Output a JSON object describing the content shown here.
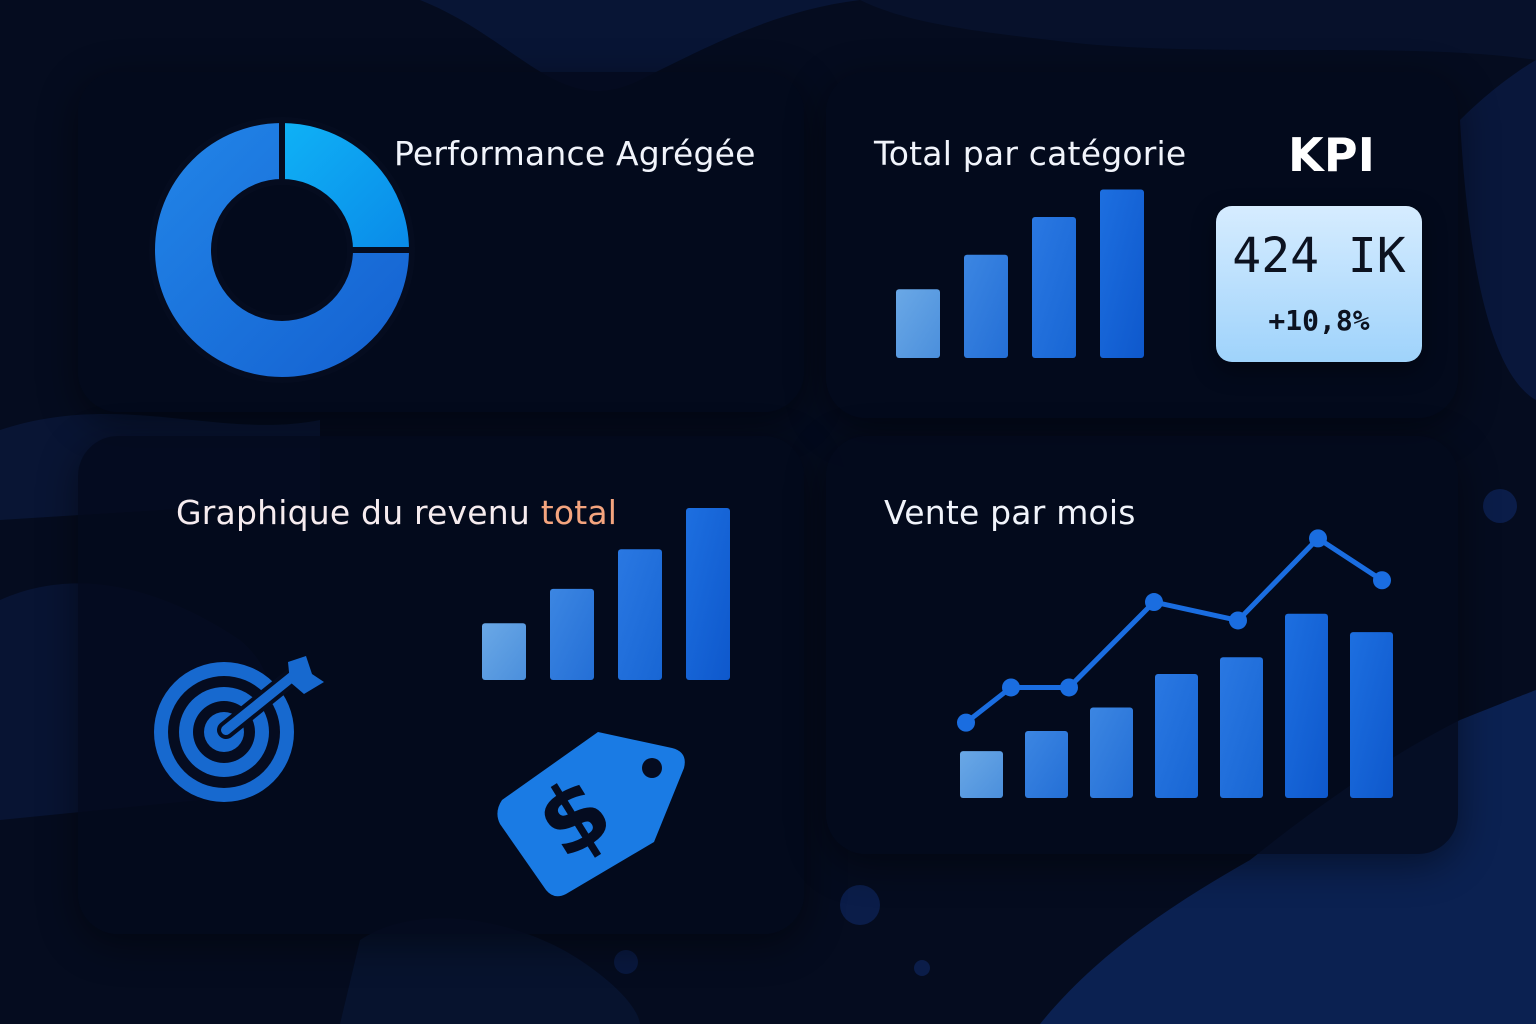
{
  "colors": {
    "background": "#050c1f",
    "panel": "#040a1c",
    "accent_blue": "#1a7ae6",
    "bright_blue": "#0aa2f2",
    "light_blue": "#5aa3e6",
    "kpi_card": "#bfe2fd",
    "title_accent": "#f4a47e"
  },
  "panels": {
    "performance": {
      "title": "Performance Agrégée"
    },
    "category": {
      "title": "Total par catégorie"
    },
    "revenue": {
      "title_main": "Graphique du revenu ",
      "title_accent": "total"
    },
    "sales": {
      "title": "Vente par mois"
    }
  },
  "kpi": {
    "title": "KPI",
    "value": "424 IK",
    "change": "+10,8%"
  },
  "icons": {
    "target": "target-arrow-icon",
    "price_tag": "dollar-price-tag-icon"
  },
  "chart_data": [
    {
      "type": "pie",
      "title": "Performance Agrégée",
      "values": [
        25,
        75
      ]
    },
    {
      "type": "bar",
      "title": "Total par catégorie",
      "values": [
        4,
        6,
        8.2,
        9.8
      ],
      "ylim": [
        0,
        10
      ]
    },
    {
      "type": "bar",
      "title": "Graphique du revenu total",
      "values": [
        3.3,
        5.3,
        7.6,
        10
      ],
      "ylim": [
        0,
        10
      ]
    },
    {
      "type": "bar",
      "title": "Vente par mois",
      "series": [
        {
          "type": "bar",
          "values": [
            2.8,
            4,
            5.4,
            7.4,
            8.4,
            11,
            9.9
          ]
        },
        {
          "type": "line",
          "values": [
            4.5,
            6.6,
            6.6,
            11.7,
            10.6,
            15.5,
            13
          ]
        }
      ],
      "ylim": [
        0,
        16
      ]
    }
  ]
}
